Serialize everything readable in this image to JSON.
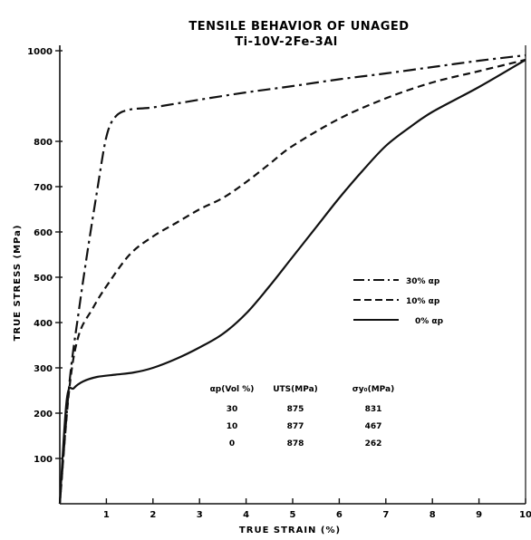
{
  "chart_data": {
    "type": "line",
    "title": "TENSILE BEHAVIOR OF UNAGED",
    "subtitle": "Ti-10V-2Fe-3Al",
    "xlabel": "TRUE STRAIN (%)",
    "ylabel": "TRUE STRESS (MPa)",
    "xlim": [
      0,
      10
    ],
    "ylim": [
      0,
      1000
    ],
    "x_ticks": [
      "1",
      "2",
      "3",
      "4",
      "5",
      "6",
      "7",
      "8",
      "9",
      "10"
    ],
    "y_ticks": [
      "100",
      "200",
      "300",
      "400",
      "500",
      "600",
      "700",
      "800",
      "1000"
    ],
    "y_tick_values": [
      100,
      200,
      300,
      400,
      500,
      600,
      700,
      800,
      1000
    ],
    "legend_position": "right",
    "series": [
      {
        "name": "30% αp",
        "style": "dashdot",
        "x": [
          0,
          0.2,
          0.4,
          0.6,
          0.8,
          1.0,
          1.2,
          1.5,
          2.0,
          3.0,
          4.0,
          5.0,
          6.0,
          7.0,
          8.0,
          9.0,
          10.0
        ],
        "y": [
          0,
          260,
          420,
          560,
          690,
          810,
          855,
          870,
          875,
          892,
          908,
          922,
          937,
          950,
          964,
          978,
          990
        ]
      },
      {
        "name": "10% αp",
        "style": "dashed",
        "x": [
          0,
          0.2,
          0.4,
          0.7,
          1.0,
          1.5,
          2.0,
          2.5,
          3.0,
          3.5,
          4.0,
          4.5,
          5.0,
          6.0,
          7.0,
          8.0,
          9.0,
          10.0
        ],
        "y": [
          0,
          250,
          370,
          430,
          480,
          550,
          590,
          620,
          650,
          675,
          710,
          750,
          790,
          850,
          895,
          930,
          955,
          980
        ]
      },
      {
        "name": "0% αp",
        "style": "solid",
        "x": [
          0,
          0.15,
          0.3,
          0.5,
          0.8,
          1.2,
          1.6,
          2.0,
          2.5,
          3.0,
          3.5,
          4.0,
          4.5,
          5.0,
          5.5,
          6.0,
          6.5,
          7.0,
          7.5,
          8.0,
          9.0,
          10.0
        ],
        "y": [
          0,
          230,
          255,
          270,
          280,
          285,
          290,
          300,
          320,
          345,
          375,
          420,
          480,
          545,
          610,
          675,
          735,
          790,
          830,
          865,
          920,
          980
        ]
      }
    ],
    "table": {
      "headers": [
        "αp(Vol %)",
        "UTS(MPa)",
        "σy₀(MPa)"
      ],
      "rows": [
        [
          "30",
          "875",
          "831"
        ],
        [
          "10",
          "877",
          "467"
        ],
        [
          "0",
          "878",
          "262"
        ]
      ]
    }
  }
}
